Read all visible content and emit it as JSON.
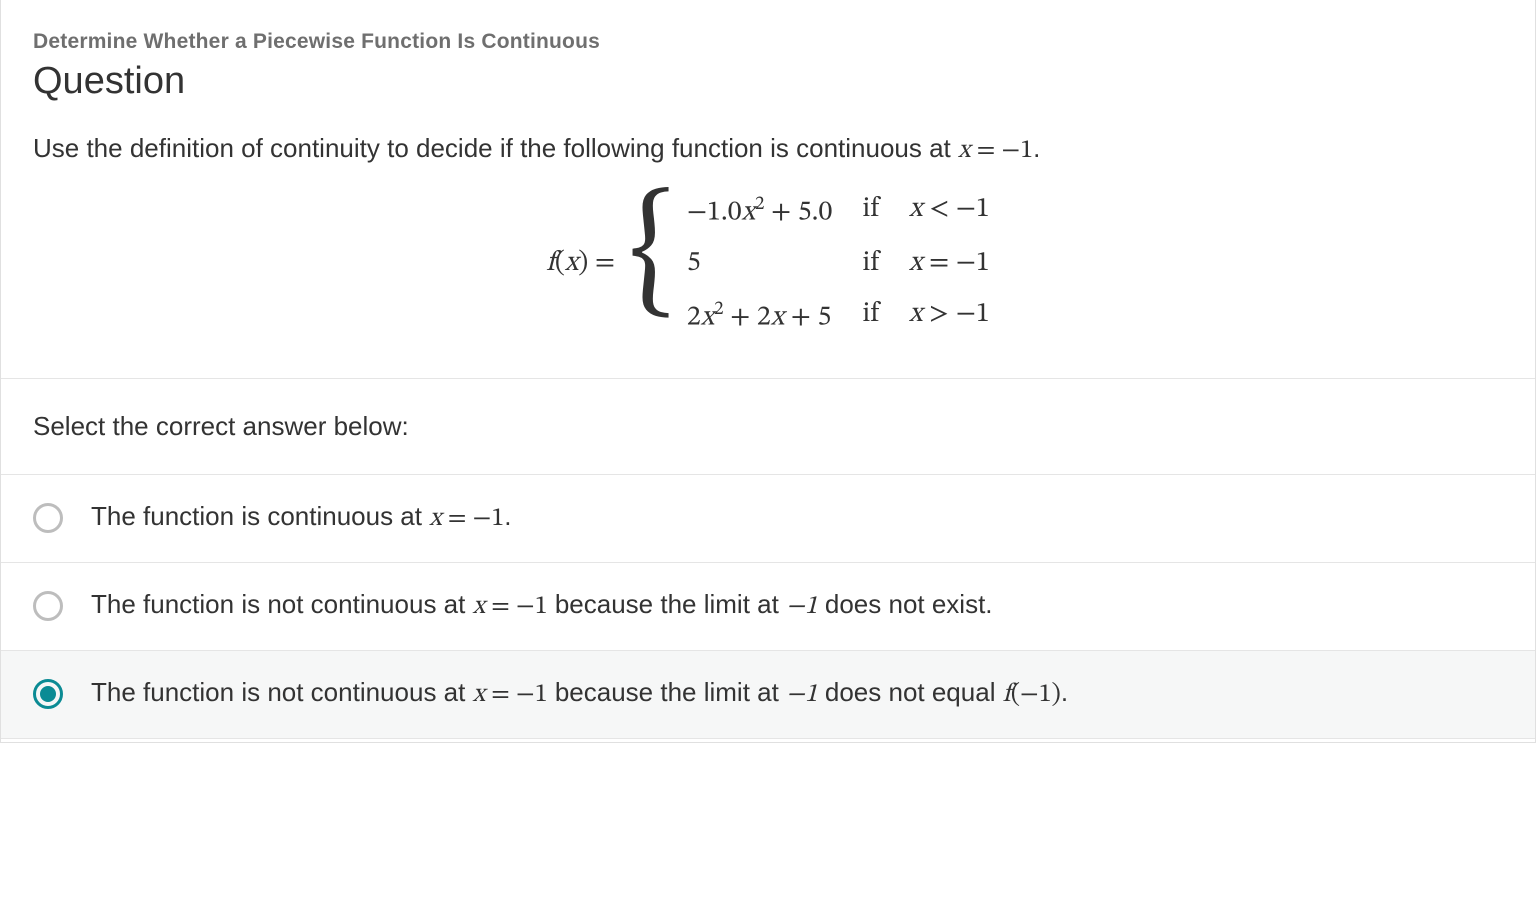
{
  "colors": {
    "text": "#333333",
    "muted": "#6f6f6f",
    "border": "#e5e5e5",
    "accent": "#0b8b94",
    "radio_border": "#bdbdbd",
    "selected_bg": "#f6f7f7",
    "background": "#ffffff"
  },
  "fonts": {
    "ui_family": "Lucida Sans, Lucida Grande, Segoe UI, Arial, sans-serif",
    "math_family": "Cambria Math, STIX Two Math, Georgia, serif",
    "subtitle_size_pt": 16,
    "title_size_pt": 28,
    "body_size_pt": 19,
    "math_size_pt": 21
  },
  "header": {
    "subtitle": "Determine Whether a Piecewise Function Is Continuous",
    "title": "Question"
  },
  "prompt": {
    "text_before": "Use the definition of continuity to decide if the following function is continuous at ",
    "math": "x = −1",
    "text_after": "."
  },
  "function": {
    "lhs": "f(x) = ",
    "cases": [
      {
        "expr": "−1.0x² + 5.0",
        "if": "if",
        "cond": "x < −1"
      },
      {
        "expr": "5",
        "if": "if",
        "cond": "x = −1"
      },
      {
        "expr": "2x² + 2x + 5",
        "if": "if",
        "cond": "x > −1"
      }
    ]
  },
  "answers": {
    "heading": "Select the correct answer below:",
    "options": [
      {
        "selected": false,
        "before": "The function is continuous at ",
        "math1": "x = −1",
        "mid": "",
        "math2": "",
        "after": "."
      },
      {
        "selected": false,
        "before": "The function is not continuous at ",
        "math1": "x = −1",
        "mid": " because the limit at ",
        "math2": "−1",
        "after": " does not exist."
      },
      {
        "selected": true,
        "before": "The function is not continuous at ",
        "math1": "x = −1",
        "mid": " because the limit at ",
        "math2": "−1",
        "after_before_f": " does not equal ",
        "f_notation": "f(−1)",
        "after": "."
      }
    ]
  }
}
